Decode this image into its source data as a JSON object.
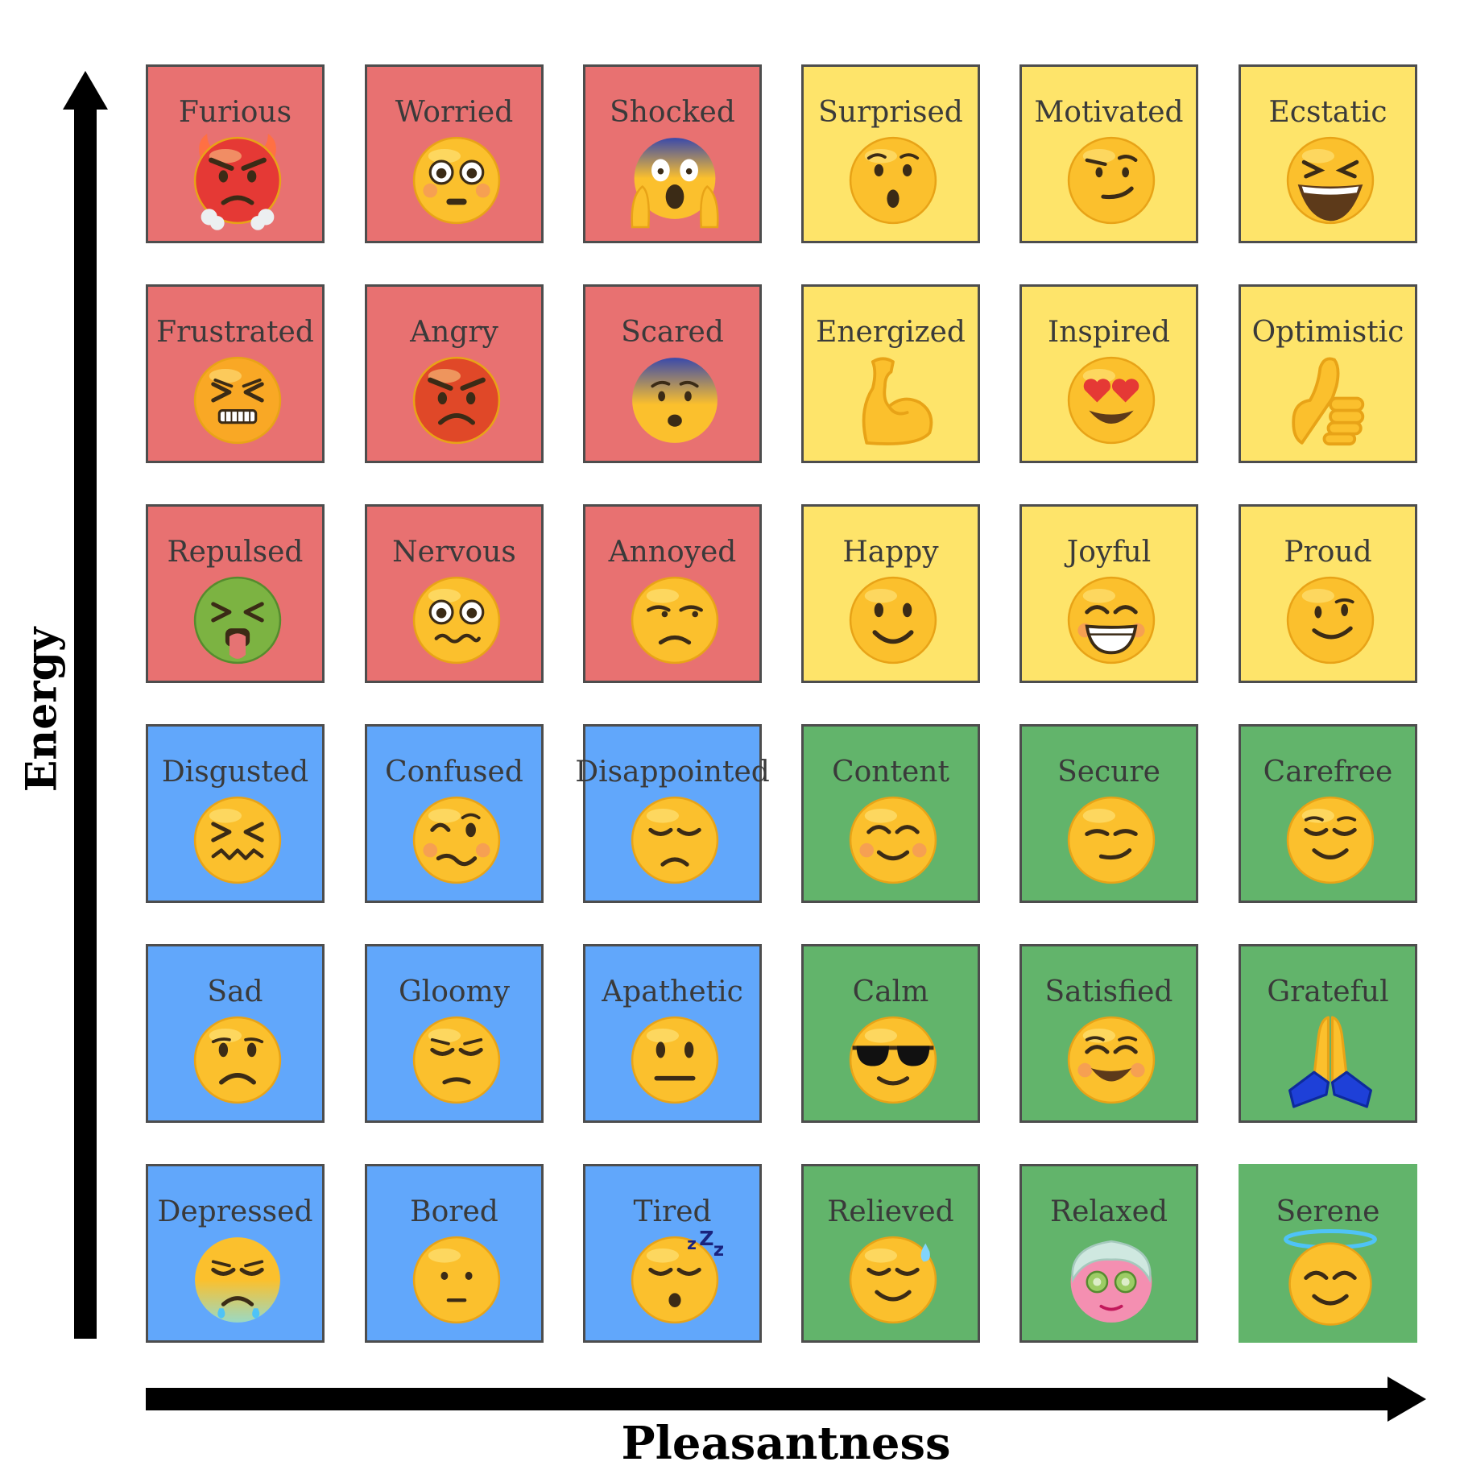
{
  "axes": {
    "y_label": "Energy",
    "x_label": "Pleasantness"
  },
  "colors": {
    "red": "#e87171",
    "yellow": "#fee46a",
    "blue": "#61a7fb",
    "green": "#62b46b"
  },
  "grid": {
    "rows": [
      [
        {
          "label": "Furious",
          "color": "red",
          "icon": "furious-face-icon"
        },
        {
          "label": "Worried",
          "color": "red",
          "icon": "flushed-face-icon"
        },
        {
          "label": "Shocked",
          "color": "red",
          "icon": "screaming-face-icon"
        },
        {
          "label": "Surprised",
          "color": "yellow",
          "icon": "hushed-face-icon"
        },
        {
          "label": "Motivated",
          "color": "yellow",
          "icon": "smirking-face-icon"
        },
        {
          "label": "Ecstatic",
          "color": "yellow",
          "icon": "laughing-face-icon"
        }
      ],
      [
        {
          "label": "Frustrated",
          "color": "red",
          "icon": "persevering-face-icon"
        },
        {
          "label": "Angry",
          "color": "red",
          "icon": "angry-face-icon"
        },
        {
          "label": "Scared",
          "color": "red",
          "icon": "fearful-face-icon"
        },
        {
          "label": "Energized",
          "color": "yellow",
          "icon": "flexed-biceps-icon"
        },
        {
          "label": "Inspired",
          "color": "yellow",
          "icon": "heart-eyes-face-icon"
        },
        {
          "label": "Optimistic",
          "color": "yellow",
          "icon": "thumbs-up-icon"
        }
      ],
      [
        {
          "label": "Repulsed",
          "color": "red",
          "icon": "vomiting-face-icon"
        },
        {
          "label": "Nervous",
          "color": "red",
          "icon": "woozy-eyes-face-icon"
        },
        {
          "label": "Annoyed",
          "color": "red",
          "icon": "unamused-face-icon"
        },
        {
          "label": "Happy",
          "color": "yellow",
          "icon": "slightly-smiling-face-icon"
        },
        {
          "label": "Joyful",
          "color": "yellow",
          "icon": "grinning-face-icon"
        },
        {
          "label": "Proud",
          "color": "yellow",
          "icon": "proud-smile-face-icon"
        }
      ],
      [
        {
          "label": "Disgusted",
          "color": "blue",
          "icon": "confounded-face-icon"
        },
        {
          "label": "Confused",
          "color": "blue",
          "icon": "confused-wink-face-icon"
        },
        {
          "label": "Disappointed",
          "color": "blue",
          "icon": "disappointed-face-icon"
        },
        {
          "label": "Content",
          "color": "green",
          "icon": "blushing-face-icon"
        },
        {
          "label": "Secure",
          "color": "green",
          "icon": "smug-face-icon"
        },
        {
          "label": "Carefree",
          "color": "green",
          "icon": "relieved-smile-face-icon"
        }
      ],
      [
        {
          "label": "Sad",
          "color": "blue",
          "icon": "frowning-face-icon"
        },
        {
          "label": "Gloomy",
          "color": "blue",
          "icon": "pensive-face-icon"
        },
        {
          "label": "Apathetic",
          "color": "blue",
          "icon": "neutral-face-icon"
        },
        {
          "label": "Calm",
          "color": "green",
          "icon": "sunglasses-face-icon"
        },
        {
          "label": "Satisfied",
          "color": "green",
          "icon": "smiling-eyes-face-icon"
        },
        {
          "label": "Grateful",
          "color": "green",
          "icon": "folded-hands-icon"
        }
      ],
      [
        {
          "label": "Depressed",
          "color": "blue",
          "icon": "crying-face-icon"
        },
        {
          "label": "Bored",
          "color": "blue",
          "icon": "expressionless-face-icon"
        },
        {
          "label": "Tired",
          "color": "blue",
          "icon": "sleeping-face-icon"
        },
        {
          "label": "Relieved",
          "color": "green",
          "icon": "sweat-smile-face-icon"
        },
        {
          "label": "Relaxed",
          "color": "green",
          "icon": "face-mask-spa-icon"
        },
        {
          "label": "Serene",
          "color": "green",
          "icon": "halo-face-icon",
          "no_border": true
        }
      ]
    ]
  }
}
